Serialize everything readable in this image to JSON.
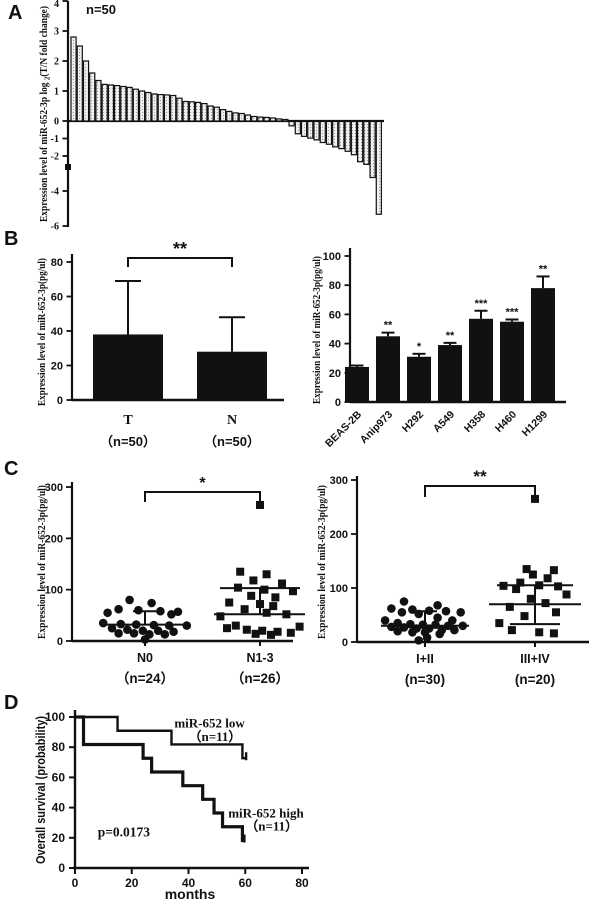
{
  "figure_labels": {
    "A": "A",
    "B": "B",
    "C": "C",
    "D": "D"
  },
  "colors": {
    "ink": "#111111",
    "waterfall_bar_fill": "#efefef",
    "waterfall_bar_dot": "#9a9a9a"
  },
  "chart_data": [
    {
      "panel": "A",
      "type": "bar",
      "subtype": "waterfall",
      "annotation": "n=50",
      "ylabel_parts": {
        "prefix": "Expression level of miR-652-3p log ",
        "sub": "2",
        "suffix": "(T/N fold change)"
      },
      "yticks": [
        4,
        3,
        2,
        1,
        0,
        -1,
        -2,
        -4,
        -6
      ],
      "ylim": [
        -6,
        4
      ],
      "values": [
        2.8,
        2.5,
        2.0,
        1.6,
        1.35,
        1.22,
        1.2,
        1.18,
        1.15,
        1.12,
        1.06,
        1.0,
        0.95,
        0.9,
        0.88,
        0.87,
        0.85,
        0.76,
        0.65,
        0.64,
        0.62,
        0.58,
        0.5,
        0.46,
        0.38,
        0.32,
        0.27,
        0.25,
        0.2,
        0.15,
        0.13,
        0.12,
        0.1,
        0.07,
        0.05,
        -0.25,
        -0.7,
        -0.85,
        -0.95,
        -1.05,
        -1.2,
        -1.3,
        -1.45,
        -1.55,
        -1.7,
        -1.9,
        -2.3,
        -2.45,
        -3.2,
        -5.3
      ]
    },
    {
      "panel": "B-left",
      "type": "bar",
      "ylabel": "Expression level of  miR-652-3p(pg/ul)",
      "categories": [
        "T",
        "N"
      ],
      "sub_labels": [
        "（n=50）",
        "（n=50）"
      ],
      "values": [
        38,
        28
      ],
      "errors_up": [
        31,
        20
      ],
      "yticks": [
        0,
        20,
        40,
        60,
        80
      ],
      "ylim": [
        0,
        80
      ],
      "significance": "**"
    },
    {
      "panel": "B-right",
      "type": "bar",
      "ylabel": "Expression level of  miR-652-3p(pg/ul)",
      "categories": [
        "BEAS-2B",
        "Anip973",
        "H292",
        "A549",
        "H358",
        "H460",
        "H1299"
      ],
      "values": [
        24,
        45,
        31,
        39,
        57,
        55,
        78
      ],
      "errors_up": [
        1,
        2.5,
        2,
        1.5,
        5.5,
        1.5,
        8
      ],
      "stars": [
        "",
        "**",
        "*",
        "**",
        "***",
        "***",
        "**"
      ],
      "yticks": [
        0,
        20,
        40,
        60,
        80,
        100
      ],
      "ylim": [
        0,
        100
      ]
    },
    {
      "panel": "C-left",
      "type": "scatter",
      "ylabel": "Expression level of  miR-652-3p(pg/ul)",
      "yticks": [
        0,
        100,
        200,
        300
      ],
      "ylim": [
        0,
        300
      ],
      "significance": "*",
      "groups": [
        {
          "label": "N0",
          "sub_label": "（n=24）",
          "marker": "circle",
          "mean": 32,
          "whiskers": [
            58
          ],
          "points": [
            [
              -0.35,
              80
            ],
            [
              0.15,
              74
            ],
            [
              -0.6,
              62
            ],
            [
              -0.15,
              60
            ],
            [
              0.35,
              58
            ],
            [
              0.75,
              57
            ],
            [
              -0.85,
              55
            ],
            [
              0.6,
              52
            ],
            [
              -0.95,
              35
            ],
            [
              -0.55,
              33
            ],
            [
              -0.2,
              32
            ],
            [
              0.2,
              31
            ],
            [
              0.55,
              30
            ],
            [
              0.95,
              30
            ],
            [
              -0.75,
              25
            ],
            [
              -0.4,
              22
            ],
            [
              -0.05,
              20
            ],
            [
              0.3,
              20
            ],
            [
              0.65,
              18
            ],
            [
              -0.6,
              15
            ],
            [
              -0.25,
              15
            ],
            [
              0.1,
              13
            ],
            [
              0.45,
              13
            ],
            [
              0,
              3
            ]
          ]
        },
        {
          "label": "N1-3",
          "sub_label": "（n=26）",
          "marker": "square",
          "mean": 52,
          "whiskers": [
            103
          ],
          "points": [
            [
              0,
              265
            ],
            [
              -0.45,
              135
            ],
            [
              0.15,
              130
            ],
            [
              -0.15,
              118
            ],
            [
              0.5,
              112
            ],
            [
              -0.5,
              104
            ],
            [
              0.1,
              100
            ],
            [
              0.75,
              97
            ],
            [
              -0.2,
              88
            ],
            [
              0.35,
              85
            ],
            [
              -0.7,
              75
            ],
            [
              0,
              72
            ],
            [
              0.3,
              68
            ],
            [
              -0.35,
              62
            ],
            [
              0.15,
              55
            ],
            [
              0.6,
              52
            ],
            [
              -0.9,
              48
            ],
            [
              -0.55,
              30
            ],
            [
              0.9,
              28
            ],
            [
              -0.75,
              25
            ],
            [
              -0.3,
              22
            ],
            [
              0.05,
              20
            ],
            [
              0.4,
              18
            ],
            [
              0.7,
              16
            ],
            [
              -0.1,
              14
            ],
            [
              0.25,
              12
            ]
          ]
        }
      ]
    },
    {
      "panel": "C-right",
      "type": "scatter",
      "ylabel": "Expression level of  miR-652-3p(pg/ul)",
      "yticks": [
        0,
        100,
        200,
        300
      ],
      "ylim": [
        0,
        300
      ],
      "significance": "**",
      "groups": [
        {
          "label": "I+II",
          "sub_label": "(n=30)",
          "marker": "circle",
          "mean": 30,
          "whiskers": [
            57
          ],
          "points": [
            [
              -0.5,
              75
            ],
            [
              0.3,
              68
            ],
            [
              -0.8,
              62
            ],
            [
              -0.3,
              60
            ],
            [
              0.1,
              58
            ],
            [
              0.5,
              57
            ],
            [
              0.85,
              55
            ],
            [
              -0.55,
              55
            ],
            [
              -0.15,
              52
            ],
            [
              0.3,
              45
            ],
            [
              -0.95,
              40
            ],
            [
              0.65,
              40
            ],
            [
              -0.65,
              35
            ],
            [
              -0.35,
              33
            ],
            [
              -0.05,
              32
            ],
            [
              0.25,
              32
            ],
            [
              0.55,
              30
            ],
            [
              0.9,
              30
            ],
            [
              -0.8,
              28
            ],
            [
              -0.5,
              27
            ],
            [
              -0.2,
              25
            ],
            [
              0.1,
              25
            ],
            [
              0.4,
              22
            ],
            [
              0.7,
              22
            ],
            [
              -0.65,
              20
            ],
            [
              -0.3,
              18
            ],
            [
              0,
              18
            ],
            [
              0.35,
              15
            ],
            [
              0.05,
              8
            ],
            [
              -0.15,
              3
            ]
          ]
        },
        {
          "label": "III+IV",
          "sub_label": "(n=20)",
          "marker": "square",
          "mean": 70,
          "whiskers": [
            105,
            33
          ],
          "points": [
            [
              0,
              265
            ],
            [
              -0.2,
              135
            ],
            [
              0.45,
              133
            ],
            [
              -0.05,
              125
            ],
            [
              0.3,
              118
            ],
            [
              -0.35,
              110
            ],
            [
              0.1,
              105
            ],
            [
              -0.75,
              104
            ],
            [
              0.55,
              103
            ],
            [
              -0.45,
              98
            ],
            [
              0.75,
              88
            ],
            [
              -0.1,
              80
            ],
            [
              0.25,
              72
            ],
            [
              -0.6,
              65
            ],
            [
              0.5,
              55
            ],
            [
              -0.25,
              48
            ],
            [
              -0.85,
              35
            ],
            [
              -0.55,
              22
            ],
            [
              0.1,
              18
            ],
            [
              0.45,
              16
            ]
          ]
        }
      ]
    },
    {
      "panel": "D",
      "type": "line",
      "subtype": "kaplan-meier",
      "ylabel": "Overall survival (probability)",
      "xlabel": "months",
      "yticks": [
        0,
        20,
        40,
        60,
        80,
        100
      ],
      "xticks": [
        0,
        20,
        40,
        60,
        80
      ],
      "ylim": [
        0,
        100
      ],
      "xlim": [
        0,
        80
      ],
      "p_label": "p=0.0173",
      "p_pos": [
        8,
        21
      ],
      "series": [
        {
          "name": "miR-652 low",
          "n_label": "（n=11）",
          "steps": [
            [
              0,
              100
            ],
            [
              15,
              100
            ],
            [
              15,
              90.9
            ],
            [
              34,
              90.9
            ],
            [
              34,
              81.8
            ],
            [
              59,
              81.8
            ],
            [
              59,
              72.7
            ],
            [
              60.5,
              72.7
            ]
          ],
          "censor": [
            60.3,
            72.7
          ],
          "label_pos": [
            35,
            93
          ],
          "n_pos": [
            40,
            84
          ]
        },
        {
          "name": "miR-652 high",
          "n_label": "（n=11）",
          "steps": [
            [
              0,
              100
            ],
            [
              3,
              100
            ],
            [
              3,
              81.8
            ],
            [
              24,
              81.8
            ],
            [
              24,
              72.7
            ],
            [
              27,
              72.7
            ],
            [
              27,
              63.6
            ],
            [
              38,
              63.6
            ],
            [
              38,
              54.5
            ],
            [
              45,
              54.5
            ],
            [
              45,
              45.5
            ],
            [
              49,
              45.5
            ],
            [
              49,
              36.4
            ],
            [
              52,
              36.4
            ],
            [
              52,
              27.3
            ],
            [
              59,
              27.3
            ],
            [
              59,
              18.2
            ],
            [
              60,
              18.2
            ]
          ],
          "censor": [
            59.7,
            18.2
          ],
          "label_pos": [
            54,
            33.5
          ],
          "n_pos": [
            60,
            25
          ]
        }
      ]
    }
  ]
}
